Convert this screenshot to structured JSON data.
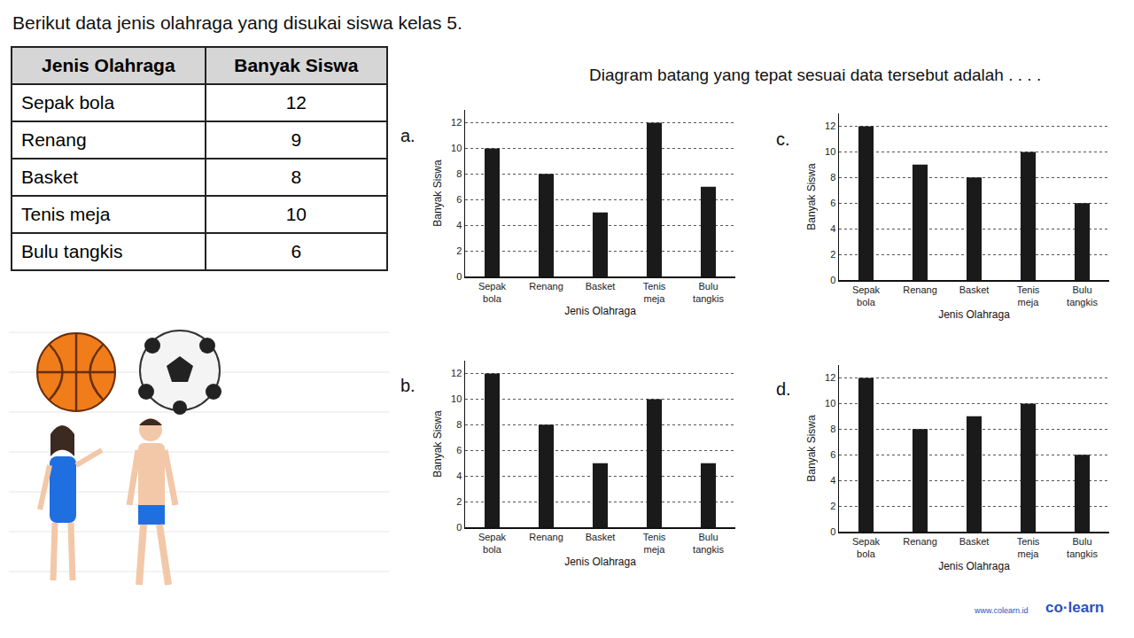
{
  "heading": "Berikut data jenis olahraga yang disukai siswa kelas 5.",
  "table": {
    "header": [
      "Jenis Olahraga",
      "Banyak Siswa"
    ],
    "rows": [
      [
        "Sepak bola",
        12
      ],
      [
        "Renang",
        9
      ],
      [
        "Basket",
        8
      ],
      [
        "Tenis meja",
        10
      ],
      [
        "Bulu tangkis",
        6
      ]
    ]
  },
  "question": "Diagram batang yang tepat sesuai data tersebut adalah . . . .",
  "chart_data": [
    {
      "type": "bar",
      "title": "a.",
      "categories": [
        "Sepak bola",
        "Renang",
        "Basket",
        "Tenis meja",
        "Bulu tangkis"
      ],
      "values": [
        10,
        8,
        5,
        12,
        7
      ],
      "color": "#1a1a1a",
      "xlabel": "Jenis Olahraga",
      "ylabel": "Banyak Siswa",
      "ylim": [
        0,
        13
      ],
      "yticks": [
        0,
        2,
        4,
        6,
        8,
        10,
        12
      ],
      "grid": true
    },
    {
      "type": "bar",
      "title": "b.",
      "categories": [
        "Sepak bola",
        "Renang",
        "Basket",
        "Tenis meja",
        "Bulu tangkis"
      ],
      "values": [
        12,
        8,
        5,
        10,
        5
      ],
      "color": "#1a1a1a",
      "xlabel": "Jenis Olahraga",
      "ylabel": "Banyak Siswa",
      "ylim": [
        0,
        13
      ],
      "yticks": [
        0,
        2,
        4,
        6,
        8,
        10,
        12
      ],
      "grid": true
    },
    {
      "type": "bar",
      "title": "c.",
      "categories": [
        "Sepak bola",
        "Renang",
        "Basket",
        "Tenis meja",
        "Bulu tangkis"
      ],
      "values": [
        12,
        9,
        8,
        10,
        6
      ],
      "color": "#1a1a1a",
      "xlabel": "Jenis Olahraga",
      "ylabel": "Banyak Siswa",
      "ylim": [
        0,
        13
      ],
      "yticks": [
        0,
        2,
        4,
        6,
        8,
        10,
        12
      ],
      "grid": true
    },
    {
      "type": "bar",
      "title": "d.",
      "categories": [
        "Sepak bola",
        "Renang",
        "Basket",
        "Tenis meja",
        "Bulu tangkis"
      ],
      "values": [
        12,
        8,
        9,
        10,
        6
      ],
      "color": "#1a1a1a",
      "xlabel": "Jenis Olahraga",
      "ylabel": "Banyak Siswa",
      "ylim": [
        0,
        13
      ],
      "yticks": [
        0,
        2,
        4,
        6,
        8,
        10,
        12
      ],
      "grid": true
    }
  ],
  "footer": {
    "url": "www.colearn.id",
    "logo": "co·learn"
  }
}
